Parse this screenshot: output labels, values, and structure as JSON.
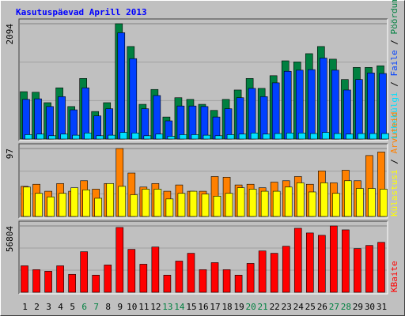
{
  "title": "Kasutuspäevad Aprill 2013",
  "chart_data": [
    {
      "type": "bar",
      "ylim": [
        0,
        2094
      ],
      "yticks": [
        2094
      ],
      "series": [
        {
          "name": "Pöördumisi",
          "color": "#008040",
          "values": [
            860,
            850,
            660,
            930,
            590,
            1100,
            500,
            660,
            2094,
            1680,
            630,
            900,
            400,
            750,
            720,
            630,
            520,
            720,
            890,
            1100,
            920,
            1150,
            1420,
            1400,
            1550,
            1680,
            1450,
            1080,
            1300,
            1300,
            1330
          ]
        },
        {
          "name": "Faile",
          "color": "#0040ff",
          "values": [
            720,
            730,
            590,
            770,
            530,
            930,
            420,
            550,
            1930,
            1460,
            550,
            790,
            330,
            600,
            600,
            590,
            400,
            550,
            750,
            920,
            770,
            1020,
            1230,
            1250,
            1260,
            1470,
            1250,
            890,
            1080,
            1200,
            1190
          ]
        },
        {
          "name": "Lehekülgi",
          "color": "#00e0ff",
          "values": [
            80,
            90,
            60,
            90,
            70,
            110,
            60,
            70,
            120,
            110,
            60,
            90,
            50,
            80,
            80,
            70,
            60,
            80,
            90,
            110,
            90,
            100,
            110,
            110,
            100,
            120,
            100,
            90,
            100,
            100,
            100
          ]
        }
      ]
    },
    {
      "type": "bar",
      "ylim": [
        0,
        97
      ],
      "yticks": [
        97
      ],
      "series": [
        {
          "name": "Arvuteid",
          "color": "#ff8000",
          "values": [
            43,
            46,
            36,
            47,
            36,
            51,
            39,
            47,
            97,
            62,
            42,
            47,
            36,
            45,
            36,
            36,
            57,
            56,
            45,
            46,
            41,
            49,
            51,
            57,
            46,
            65,
            48,
            66,
            51,
            87,
            92
          ]
        },
        {
          "name": "Külastusi",
          "color": "#ffff00",
          "values": [
            42,
            33,
            28,
            33,
            41,
            38,
            26,
            47,
            43,
            31,
            39,
            39,
            25,
            33,
            36,
            32,
            29,
            33,
            41,
            39,
            36,
            36,
            42,
            48,
            35,
            48,
            33,
            51,
            40,
            40,
            39
          ]
        }
      ]
    },
    {
      "type": "bar",
      "ylim": [
        0,
        56804
      ],
      "yticks": [
        56804
      ],
      "categories": [
        "1",
        "2",
        "3",
        "4",
        "5",
        "6",
        "7",
        "8",
        "9",
        "10",
        "11",
        "12",
        "13",
        "14",
        "15",
        "16",
        "17",
        "18",
        "19",
        "20",
        "21",
        "22",
        "23",
        "24",
        "25",
        "26",
        "27",
        "28",
        "29",
        "30",
        "31"
      ],
      "weekend": [
        5,
        6,
        12,
        13,
        19,
        20,
        26,
        27
      ],
      "weekend_color": "#008040",
      "series": [
        {
          "name": "KBaite",
          "color": "#ff0000",
          "values": [
            22700,
            19400,
            18000,
            22700,
            15370,
            34750,
            14700,
            23400,
            55500,
            36750,
            24060,
            38760,
            14700,
            26730,
            33400,
            19380,
            25400,
            19380,
            14700,
            24730,
            35420,
            33400,
            39430,
            54800,
            50790,
            48780,
            56804,
            53460,
            37420,
            40100,
            42770
          ]
        }
      ]
    }
  ]
}
